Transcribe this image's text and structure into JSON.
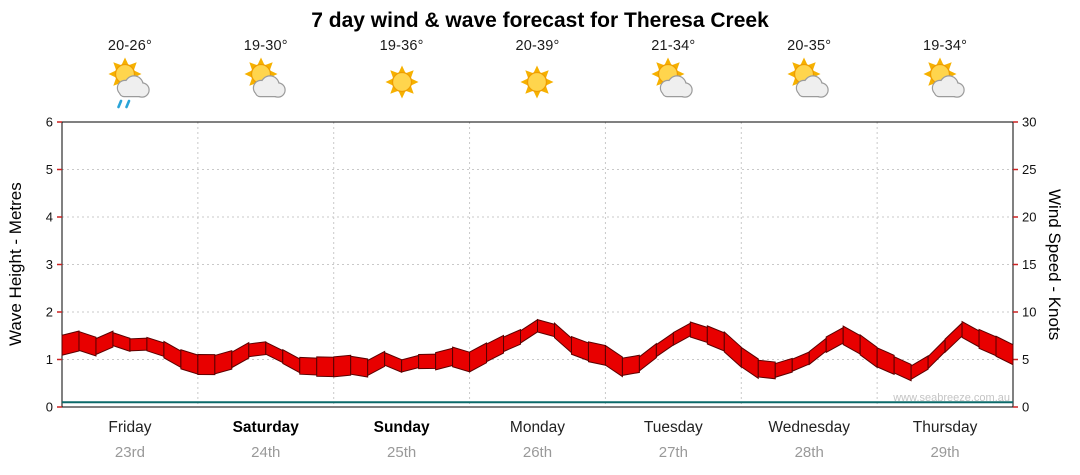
{
  "title": "7 day wind & wave forecast for Theresa Creek",
  "watermark": "www.seabreeze.com.au",
  "axes": {
    "left_label": "Wave Height - Metres",
    "right_label": "Wind Speed - Knots"
  },
  "days": [
    {
      "name": "Friday",
      "date": "23rd",
      "temp": "20-26°",
      "icon": "sun-cloud-rain",
      "weekend": false
    },
    {
      "name": "Saturday",
      "date": "24th",
      "temp": "19-30°",
      "icon": "sun-cloud",
      "weekend": true
    },
    {
      "name": "Sunday",
      "date": "25th",
      "temp": "19-36°",
      "icon": "sun",
      "weekend": true
    },
    {
      "name": "Monday",
      "date": "26th",
      "temp": "20-39°",
      "icon": "sun",
      "weekend": false
    },
    {
      "name": "Tuesday",
      "date": "27th",
      "temp": "21-34°",
      "icon": "sun-cloud",
      "weekend": false
    },
    {
      "name": "Wednesday",
      "date": "28th",
      "temp": "20-35°",
      "icon": "sun-cloud",
      "weekend": false
    },
    {
      "name": "Thursday",
      "date": "29th",
      "temp": "19-34°",
      "icon": "sun-cloud",
      "weekend": false
    }
  ],
  "chart_data": {
    "type": "area",
    "title": "7 day wind & wave forecast for Theresa Creek",
    "legend": "none",
    "grid": true,
    "x_days": [
      "Friday 23rd",
      "Saturday 24th",
      "Sunday 25th",
      "Monday 26th",
      "Tuesday 27th",
      "Wednesday 28th",
      "Thursday 29th"
    ],
    "left_axis": {
      "label": "Wave Height - Metres",
      "range": [
        0,
        6
      ],
      "ticks": [
        0,
        1,
        2,
        3,
        4,
        5,
        6
      ],
      "unit": "m"
    },
    "right_axis": {
      "label": "Wind Speed - Knots",
      "range": [
        0,
        30
      ],
      "ticks": [
        0,
        5,
        10,
        15,
        20,
        25,
        30
      ],
      "unit": "knots"
    },
    "series": [
      {
        "name": "Wind Speed",
        "unit": "knots",
        "style": "red-flag-band",
        "color": "#e80000",
        "points_per_day": 8,
        "values": [
          6.5,
          7.2,
          6.2,
          7.0,
          6.8,
          6.6,
          5.8,
          5.2,
          4.6,
          4.2,
          5.0,
          6.2,
          6.0,
          5.2,
          4.6,
          4.2,
          4.0,
          4.6,
          4.2,
          4.8,
          4.4,
          5.0,
          4.6,
          5.2,
          5.0,
          5.6,
          6.4,
          7.6,
          8.6,
          7.8,
          6.6,
          6.0,
          5.2,
          4.2,
          4.8,
          5.8,
          7.0,
          8.4,
          7.6,
          6.6,
          5.4,
          4.2,
          3.6,
          4.4,
          5.4,
          6.4,
          7.4,
          6.8,
          5.2,
          4.2,
          3.8,
          4.8,
          6.2,
          8.2,
          7.4,
          6.2,
          5.4
        ]
      },
      {
        "name": "Wave Height",
        "unit": "metres",
        "style": "line",
        "color": "#0c6a6a",
        "values_constant": 0.1
      }
    ]
  }
}
